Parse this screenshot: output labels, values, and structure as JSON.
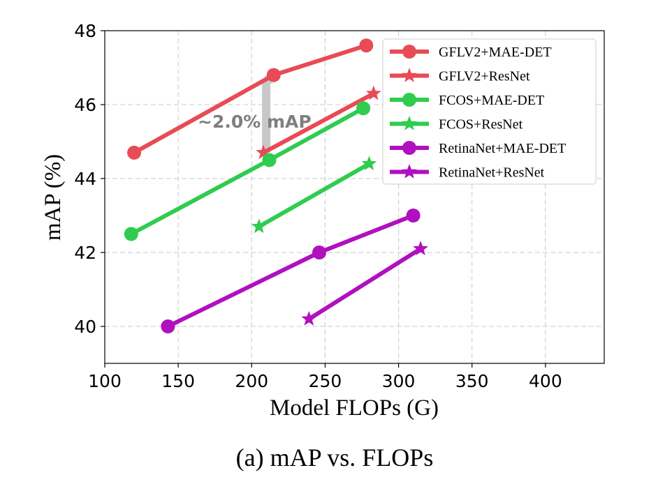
{
  "chart_data": {
    "type": "line",
    "title": "",
    "caption": "(a) mAP vs. FLOPs",
    "xlabel": "Model FLOPs (G)",
    "ylabel": "mAP (%)",
    "xlim": [
      100,
      440
    ],
    "ylim": [
      39,
      48
    ],
    "xticks": [
      100,
      150,
      200,
      250,
      300,
      350,
      400
    ],
    "yticks": [
      40,
      42,
      44,
      46,
      48
    ],
    "grid": true,
    "legend_position": "top-right",
    "annotation": {
      "text": "~2.0% mAP",
      "x": 208,
      "y_from": 44.7,
      "y_to": 46.8
    },
    "series": [
      {
        "name": "GFLV2+MAE-DET",
        "color": "#e84b55",
        "marker": "circle",
        "x": [
          120,
          215,
          278
        ],
        "y": [
          44.7,
          46.8,
          47.6
        ]
      },
      {
        "name": "GFLV2+ResNet",
        "color": "#e84b55",
        "marker": "star",
        "x": [
          208,
          283
        ],
        "y": [
          44.7,
          46.3
        ]
      },
      {
        "name": "FCOS+MAE-DET",
        "color": "#2fcc4f",
        "marker": "circle",
        "x": [
          118,
          212,
          276
        ],
        "y": [
          42.5,
          44.5,
          45.9
        ]
      },
      {
        "name": "FCOS+ResNet",
        "color": "#2fcc4f",
        "marker": "star",
        "x": [
          205,
          280
        ],
        "y": [
          42.7,
          44.4
        ]
      },
      {
        "name": "RetinaNet+MAE-DET",
        "color": "#b010bf",
        "marker": "circle",
        "x": [
          143,
          246,
          310
        ],
        "y": [
          40.0,
          42.0,
          43.0
        ]
      },
      {
        "name": "RetinaNet+ResNet",
        "color": "#b010bf",
        "marker": "star",
        "x": [
          239,
          315
        ],
        "y": [
          40.2,
          42.1
        ]
      }
    ]
  }
}
